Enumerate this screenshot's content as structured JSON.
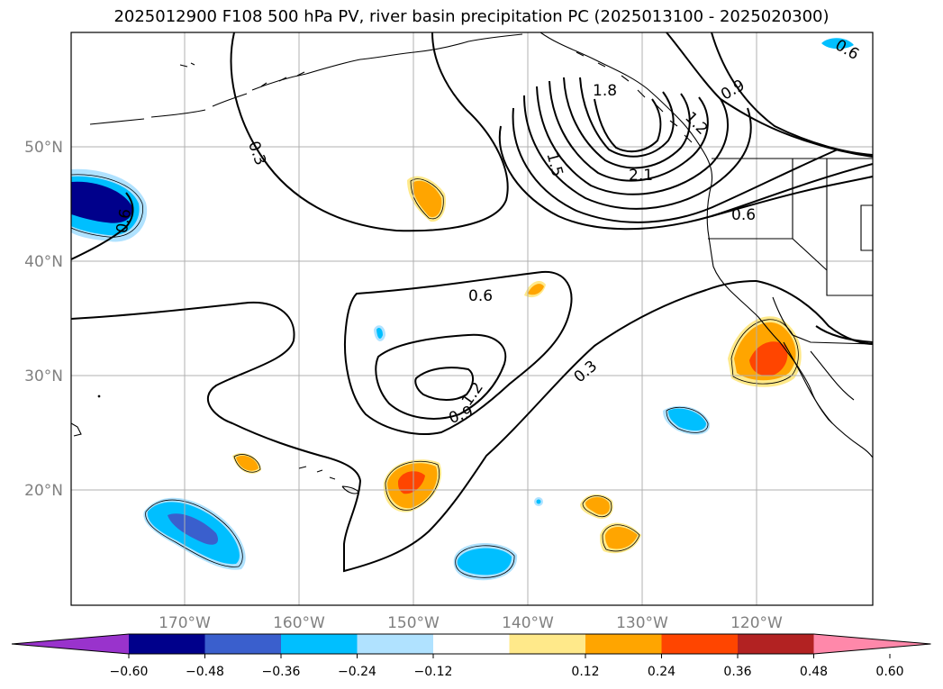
{
  "title": "2025012900 F108 500 hPa PV, river basin precipitation PC (2025013100 - 2025020300)",
  "latitude_labels": [
    "50°N",
    "40°N",
    "30°N",
    "20°N"
  ],
  "longitude_labels": [
    "170°W",
    "160°W",
    "150°W",
    "140°W",
    "130°W",
    "120°W"
  ],
  "contour_labels": [
    "0.3",
    "0.6",
    "0.9",
    "1.2",
    "1.5",
    "1.8",
    "2.1",
    "0.6",
    "0.9",
    "1.2",
    "0.3",
    "0.6",
    "0.6"
  ],
  "colorbar": {
    "ticks": [
      "−0.60",
      "−0.48",
      "−0.36",
      "−0.24",
      "−0.12",
      "0.12",
      "0.24",
      "0.36",
      "0.48",
      "0.60"
    ],
    "colors": [
      "#9933cc",
      "#00008b",
      "#3a5fcd",
      "#00bfff",
      "#b0e2ff",
      "#ffffff",
      "#ffe98a",
      "#ffa500",
      "#ff4500",
      "#b22222",
      "#ff88aa"
    ]
  },
  "shading_colors": {
    "dark_navy": "#00008b",
    "medium_blue": "#3a5fcd",
    "sky_blue": "#00bfff",
    "light_blue": "#b0e2ff",
    "yellow": "#ffe98a",
    "orange": "#ffa500",
    "red_orange": "#ff4500"
  }
}
